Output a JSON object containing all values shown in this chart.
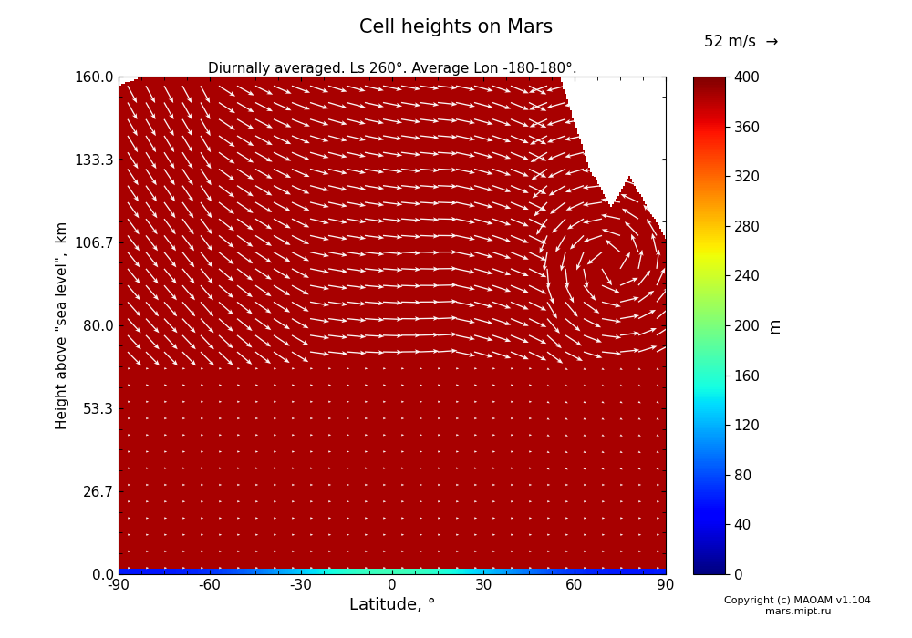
{
  "title": "Cell heights on Mars",
  "subtitle": "Diurnally averaged. Ls 260°. Average Lon -180-180°.",
  "xlabel": "Latitude, °",
  "ylabel": "Height above \"sea level\",  km",
  "colorbar_label": "m",
  "colorbar_ticks": [
    0,
    40,
    80,
    120,
    160,
    200,
    240,
    280,
    320,
    360,
    400
  ],
  "colorbar_vmin": 0,
  "colorbar_vmax": 400,
  "quiver_label": "52 m/s",
  "xlim": [
    -90,
    90
  ],
  "ylim": [
    0.0,
    160.0
  ],
  "xticks": [
    -90,
    -60,
    -30,
    0,
    30,
    60,
    90
  ],
  "yticks": [
    0.0,
    26.7,
    53.3,
    80.0,
    106.7,
    133.3,
    160.0
  ],
  "copyright_text": "Copyright (c) MAOAM v1.104\nmars.mipt.ru",
  "fig_width": 10.0,
  "fig_height": 7.0
}
